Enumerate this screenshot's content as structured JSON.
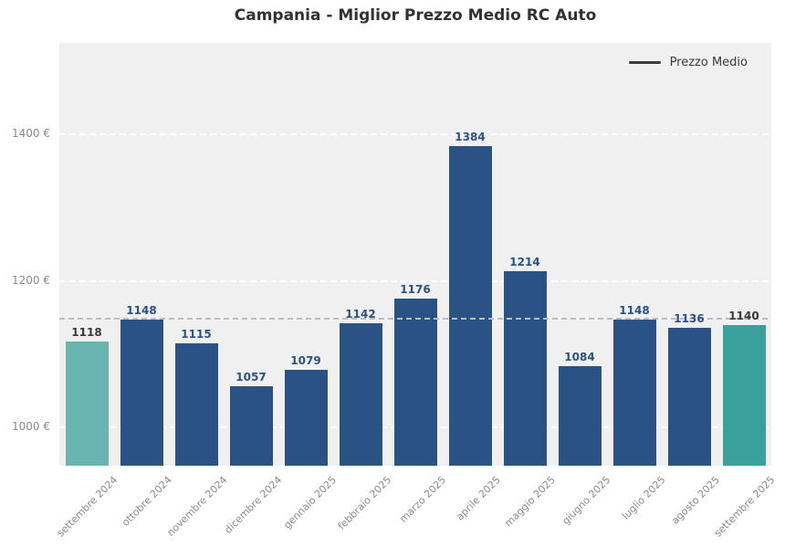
{
  "title": "Campania - Miglior Prezzo Medio RC Auto",
  "legend": {
    "label": "Prezzo Medio"
  },
  "chart_data": {
    "type": "bar",
    "title": "Campania - Miglior Prezzo Medio RC Auto",
    "categories": [
      "settembre 2024",
      "ottobre 2024",
      "novembre 2024",
      "dicembre 2024",
      "gennaio 2025",
      "febbraio 2025",
      "marzo 2025",
      "aprile 2025",
      "maggio 2025",
      "giugno 2025",
      "luglio 2025",
      "agosto 2025",
      "settembre 2025"
    ],
    "values": [
      1118,
      1148,
      1115,
      1057,
      1079,
      1142,
      1176,
      1384,
      1214,
      1084,
      1148,
      1136,
      1140
    ],
    "xlabel": "",
    "ylabel": "",
    "y_ticks": [
      1000,
      1200,
      1400
    ],
    "y_tick_labels": [
      "1000 €",
      "1200 €",
      "1400 €"
    ],
    "ylim": [
      948,
      1525
    ],
    "average_line": 1149,
    "legend": [
      "Prezzo Medio"
    ],
    "legend_position": "upper right",
    "grid": "horizontal-dashed-white",
    "highlight_first_index": 0,
    "highlight_last_index": 12,
    "colors": {
      "bar_default": "#2a5285",
      "bar_first": "#6ab5b1",
      "bar_last": "#3aa09c",
      "value_label_default": "#2a5285",
      "value_label_highlight": "#3a3a3a",
      "plot_background": "#f0f0f0",
      "gridline": "#ffffff",
      "average_line": "#bdbdbd",
      "axis_text": "#8a8a8a",
      "legend_line": "#3a3a3a",
      "title_text": "#323232"
    }
  }
}
